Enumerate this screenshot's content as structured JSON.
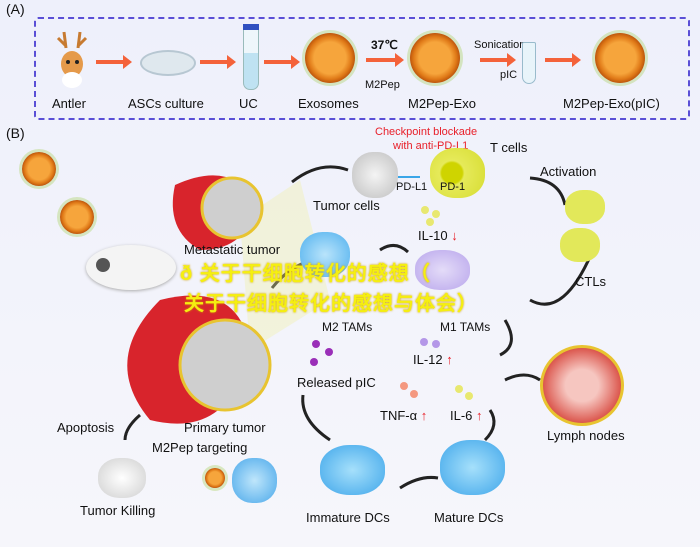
{
  "panel_a": {
    "label": "(A)",
    "steps": [
      "Antler",
      "ASCs culture",
      "UC",
      "Exosomes",
      "M2Pep-Exo",
      "M2Pep-Exo(pIC)"
    ],
    "temperature": "37℃",
    "peptide": "M2Pep",
    "sonication": "Sonication",
    "pic": "pIC"
  },
  "panel_b": {
    "label": "(B)",
    "checkpoint_line1": "Checkpoint blockade",
    "checkpoint_line2": "with anti-PD-L1",
    "t_cells": "T cells",
    "pd_l1": "PD-L1",
    "pd_1": "PD-1",
    "tumor_cells": "Tumor cells",
    "activation": "Activation",
    "metastatic_tumor": "Metastatic tumor",
    "il10": "IL-10",
    "m2_tams": "M2 TAMs",
    "m1_tams": "M1 TAMs",
    "ctls": "CTLs",
    "il12": "IL-12",
    "released_pic": "Released pIC",
    "tnf": "TNF-α",
    "il6": "IL-6",
    "primary_tumor": "Primary tumor",
    "apoptosis": "Apoptosis",
    "m2pep_targeting": "M2Pep targeting",
    "tumor_killing": "Tumor Killing",
    "immature_dcs": "Immature DCs",
    "mature_dcs": "Mature DCs",
    "lymph_nodes": "Lymph nodes",
    "up_arrow": "↑",
    "down_arrow": "↓"
  },
  "overlay": {
    "line1": "ð  关于干细胞转化的感想（",
    "line2": "关于干细胞转化的感想与体会）"
  },
  "colors": {
    "frame": "#5a4fd6",
    "arrow": "#f4623a",
    "highlight": "#e8202a",
    "overlay": "#f5ef10"
  }
}
